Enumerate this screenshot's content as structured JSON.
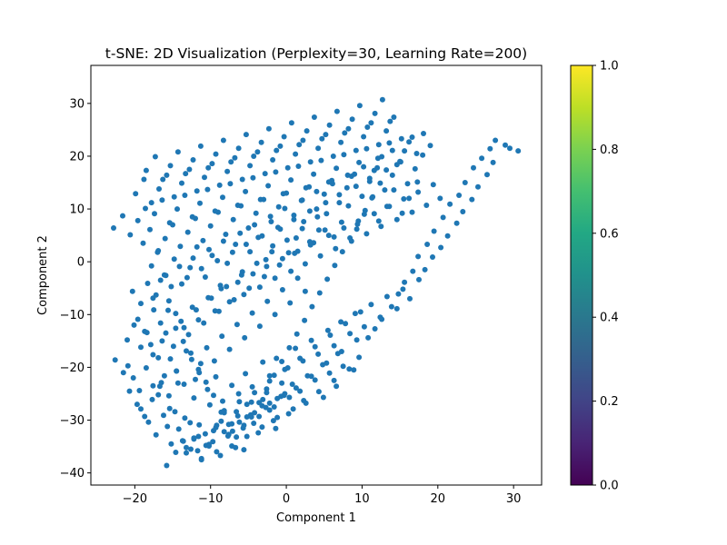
{
  "chart_data": {
    "type": "scatter",
    "title": "t-SNE: 2D Visualization (Perplexity=30, Learning Rate=200)",
    "xlabel": "Component 1",
    "ylabel": "Component 2",
    "xlim": [
      -25.8,
      33.7
    ],
    "ylim": [
      -42.3,
      37.2
    ],
    "xticks": [
      -20,
      -10,
      0,
      10,
      20,
      30
    ],
    "yticks": [
      -40,
      -30,
      -20,
      -10,
      0,
      10,
      20,
      30
    ],
    "grid": false,
    "point_color": "#1f77b4",
    "colorbar": {
      "colormap": "viridis",
      "range": [
        0.0,
        1.0
      ],
      "ticks": [
        "0.0",
        "0.2",
        "0.4",
        "0.6",
        "0.8",
        "1.0"
      ]
    },
    "points": {
      "x": [
        -22.6,
        -21.5,
        -20.9,
        -20.2,
        -19.4,
        -18.5,
        -17.6,
        -16.9,
        -16.1,
        -15.4,
        -14.3,
        -13.4,
        -12.2,
        -11.5,
        -10.1,
        -9.3,
        -8.2,
        -7.1,
        -6.4,
        -5.2,
        -4.3,
        -3.1,
        -2.2,
        -1.4,
        -0.3,
        0.9,
        1.8,
        2.6,
        3.8,
        4.9,
        5.7,
        6.6,
        7.5,
        8.9,
        9.6,
        10.8,
        11.7,
        12.6,
        13.9,
        14.8,
        15.6,
        16.7,
        17.4,
        18.6,
        19.5,
        20.7,
        21.6,
        22.8,
        23.6,
        24.7,
        25.8,
        26.9,
        27.6,
        28.9,
        29.5,
        30.6,
        -21.0,
        -20.1,
        -19.2,
        -18.4,
        -17.6,
        -16.4,
        -15.3,
        -14.5,
        -13.2,
        -12.0,
        -11.3,
        -10.4,
        -9.3,
        -8.4,
        -7.2,
        -6.3,
        -5.4,
        -4.5,
        -3.1,
        -2.2,
        -1.3,
        0.2,
        1.2,
        2.2,
        3.3,
        4.2,
        5.5,
        6.3,
        7.2,
        8.4,
        9.1,
        10.3,
        11.2,
        12.4,
        13.3,
        14.6,
        15.4,
        16.3,
        17.5,
        18.3,
        19.3,
        20.4,
        21.3,
        22.5,
        23.3,
        24.5,
        25.3,
        26.5,
        27.3,
        -19.6,
        -18.7,
        -17.5,
        -16.6,
        -15.5,
        -14.6,
        -13.5,
        -12.4,
        -11.6,
        -10.3,
        -9.4,
        -8.6,
        -7.5,
        -6.4,
        -5.6,
        -4.4,
        -3.5,
        -2.6,
        -1.5,
        -0.5,
        0.6,
        1.5,
        2.5,
        3.6,
        4.5,
        5.6,
        6.5,
        7.6,
        8.6,
        9.5,
        10.6,
        11.6,
        12.5,
        13.6,
        14.6,
        15.5,
        16.6,
        17.4,
        18.5,
        19.4,
        20.3,
        -20.3,
        -19.2,
        -18.3,
        -17.2,
        -16.1,
        -15.2,
        -14.1,
        -13.1,
        -12.3,
        -11.2,
        -10.2,
        -9.1,
        -8.3,
        -7.1,
        -6.1,
        -5.3,
        -4.2,
        -3.2,
        -2.1,
        -1.1,
        -0.2,
        1.0,
        2.1,
        3.1,
        4.0,
        5.2,
        6.1,
        7.0,
        8.1,
        9.2,
        10.2,
        11.0,
        12.1,
        13.2,
        14.0,
        15.1,
        16.2,
        17.2,
        18.1,
        19.0,
        -17.8,
        -16.9,
        -15.9,
        -14.8,
        -13.8,
        -12.7,
        -11.8,
        -10.7,
        -9.8,
        -8.7,
        -7.8,
        -6.7,
        -5.8,
        -4.8,
        -3.7,
        -2.7,
        -1.8,
        -0.8,
        0.3,
        1.3,
        2.3,
        3.2,
        4.3,
        5.3,
        6.3,
        7.3,
        8.2,
        9.3,
        10.3,
        11.3,
        12.2,
        13.3,
        14.2,
        15.3,
        16.2,
        17.3,
        -18.9,
        -18.0,
        -17.0,
        -16.0,
        -15.0,
        -14.0,
        -13.0,
        -12.0,
        -11.0,
        -10.0,
        -9.0,
        -8.0,
        -7.0,
        -6.0,
        -5.0,
        -4.0,
        -3.0,
        -2.0,
        -1.0,
        0.0,
        1.0,
        2.0,
        3.0,
        4.0,
        5.0,
        6.0,
        7.0,
        8.0,
        9.0,
        10.0,
        11.0,
        12.0,
        13.0,
        14.0,
        15.0,
        16.0,
        17.0,
        18.0,
        -17.4,
        -16.4,
        -15.4,
        -14.4,
        -13.4,
        -12.4,
        -11.4,
        -10.4,
        -9.4,
        -8.4,
        -7.4,
        -6.4,
        -5.4,
        -4.4,
        -3.4,
        -2.4,
        -1.4,
        -0.4,
        0.6,
        1.6,
        2.6,
        3.6,
        4.6,
        5.6,
        6.6,
        7.6,
        8.6,
        9.6,
        10.6,
        11.6,
        12.6,
        13.6,
        14.6,
        15.6,
        16.6,
        -19.9,
        -18.8,
        -17.8,
        -16.8,
        -15.8,
        -14.8,
        -13.8,
        -12.8,
        -11.8,
        -10.8,
        -9.8,
        -8.8,
        -7.8,
        -6.8,
        -5.8,
        -4.8,
        -3.8,
        -2.8,
        -1.8,
        -0.8,
        0.2,
        1.2,
        2.2,
        3.2,
        4.2,
        5.2,
        6.2,
        7.2,
        8.2,
        9.2,
        10.2,
        11.2,
        12.2,
        13.2,
        14.2,
        15.2,
        -18.5,
        -17.3,
        -16.3,
        -15.3,
        -14.3,
        -13.3,
        -12.3,
        -11.3,
        -10.3,
        -9.3,
        -8.3,
        -7.3,
        -6.3,
        -5.3,
        -4.3,
        -3.3,
        -2.3,
        -1.3,
        -0.3,
        0.7,
        1.7,
        2.7,
        3.7,
        4.7,
        5.7,
        6.7,
        7.7,
        8.7,
        9.7,
        10.7,
        11.7,
        12.7,
        13.7,
        -22.8,
        -21.6,
        -20.6,
        -19.6,
        -18.6,
        -17.6,
        -16.6,
        -15.6,
        -14.6,
        -13.6,
        -12.6,
        -11.6,
        -10.6,
        -9.6,
        -8.6,
        -7.6,
        -6.6,
        -5.6,
        -4.6,
        -3.6,
        -2.6,
        -1.6,
        -0.6,
        0.4,
        1.4,
        2.4,
        3.4,
        4.4,
        5.4,
        6.4,
        7.4,
        8.4,
        9.4,
        10.4,
        11.4,
        12.4,
        -20.7,
        -19.7,
        -18.7,
        -17.7,
        -16.7,
        -15.7,
        -14.7,
        -13.7,
        -12.7,
        -11.7,
        -10.7,
        -9.7,
        -8.7,
        -7.7,
        -6.7,
        -5.7,
        -4.7,
        -3.7,
        -2.7,
        -1.7,
        -0.7,
        0.3,
        1.3,
        2.3,
        3.3,
        4.3,
        5.3,
        6.3,
        7.3,
        8.3,
        9.3,
        -19.2,
        -18.2,
        -17.2,
        -16.2,
        -15.2,
        -14.2,
        -13.2,
        -12.2,
        -11.2,
        -10.2,
        -9.2,
        -8.2,
        -7.2,
        -6.2,
        -5.2,
        -4.2,
        -3.2,
        -2.2,
        -1.2,
        -0.2,
        0.8,
        1.8,
        2.8,
        3.8,
        4.8,
        5.8,
        6.8,
        7.8,
        9.8,
        -17.9,
        -16.9,
        -15.9,
        -14.9,
        -13.9,
        -12.9,
        -11.9,
        -10.9,
        -9.9,
        -8.9,
        -7.9,
        -6.9,
        -5.9,
        -4.9,
        -3.9,
        -2.9,
        -1.9,
        -0.9,
        0.1,
        1.1,
        2.1,
        3.1,
        4.1,
        5.1,
        -16.5,
        -15.5,
        -14.5,
        -13.5,
        -12.5,
        -11.5,
        -10.5,
        -9.5,
        -8.5,
        -7.5,
        -6.5,
        -5.5,
        -4.5,
        -3.5,
        -2.5,
        -1.5,
        -0.5,
        0.5,
        1.5,
        2.5,
        -15.8,
        -14.6,
        -13.6,
        -12.6,
        -11.6,
        -10.6,
        -9.6,
        -8.6,
        -7.6,
        -6.6,
        -5.6,
        -4.6,
        -3.6,
        -2.6,
        -1.6,
        -0.6,
        0.4,
        -13.2,
        -12.2,
        -11.2,
        -10.2,
        -9.2,
        -8.2,
        -7.2,
        -6.2,
        -5.2,
        -4.2,
        -3.2,
        -2.2,
        -1.2,
        -0.2
      ],
      "y": [
        -18.6,
        -21.0,
        -19.7,
        -22.0,
        -24.4,
        -20.1,
        -23.5,
        -25.2,
        -21.6,
        -27.8,
        -23.0,
        -29.6,
        -25.8,
        -30.9,
        -27.1,
        -31.4,
        -28.6,
        -32.1,
        -29.2,
        -27.0,
        -30.6,
        -26.1,
        -28.1,
        -31.6,
        -25.3,
        -27.9,
        -24.5,
        -26.8,
        -22.4,
        -25.7,
        -21.1,
        -23.6,
        -19.8,
        -20.5,
        -18.1,
        -14.4,
        -12.7,
        -10.9,
        -8.5,
        -6.1,
        -3.9,
        -1.8,
        1.0,
        3.3,
        5.8,
        8.4,
        10.9,
        12.6,
        15.0,
        17.8,
        19.6,
        21.4,
        23.0,
        22.1,
        21.5,
        21.0,
        -14.8,
        -12.0,
        -16.2,
        -13.4,
        -17.6,
        -15.0,
        -18.4,
        -20.7,
        -16.9,
        -22.3,
        -19.3,
        -24.2,
        -21.8,
        -26.4,
        -23.4,
        -25.0,
        -21.2,
        -23.7,
        -19.0,
        -21.6,
        -18.3,
        -20.1,
        -16.4,
        -18.8,
        -14.9,
        -17.5,
        -13.0,
        -15.9,
        -11.4,
        -13.6,
        -9.8,
        -12.3,
        -8.1,
        -10.5,
        -6.6,
        -8.9,
        -5.2,
        -7.0,
        -3.4,
        -1.5,
        0.9,
        2.7,
        4.9,
        7.3,
        9.5,
        11.8,
        14.2,
        16.5,
        18.8,
        -10.9,
        -13.2,
        -9.1,
        -11.6,
        -7.4,
        -9.8,
        -12.5,
        -8.6,
        -11.0,
        -6.8,
        -9.3,
        -5.1,
        -7.6,
        -3.9,
        -6.2,
        -2.3,
        -4.8,
        -0.9,
        -3.1,
        0.6,
        -1.8,
        2.0,
        -0.4,
        3.6,
        1.1,
        5.0,
        2.5,
        6.4,
        3.9,
        7.7,
        5.3,
        9.1,
        6.7,
        10.5,
        8.0,
        11.9,
        9.4,
        13.2,
        10.7,
        14.6,
        12.0,
        -5.6,
        -7.9,
        -4.1,
        -6.3,
        -2.5,
        -4.7,
        -0.9,
        -3.0,
        0.7,
        -1.3,
        2.3,
        0.2,
        3.9,
        1.8,
        5.4,
        3.3,
        7.0,
        4.9,
        8.6,
        6.5,
        10.1,
        8.0,
        11.7,
        9.6,
        13.3,
        11.2,
        14.8,
        12.7,
        16.4,
        14.3,
        18.0,
        15.8,
        19.6,
        17.4,
        21.1,
        18.9,
        22.7,
        20.5,
        24.3,
        22.0,
        -0.8,
        2.1,
        -2.6,
        0.5,
        -4.2,
        -1.1,
        2.8,
        -2.9,
        1.2,
        -4.5,
        -0.3,
        3.3,
        -1.9,
        1.9,
        4.6,
        0.4,
        3.0,
        6.2,
        1.7,
        4.5,
        7.6,
        3.2,
        6.0,
        9.1,
        4.7,
        7.5,
        10.6,
        6.2,
        9.0,
        12.1,
        7.7,
        10.5,
        13.6,
        9.2,
        12.0,
        15.1,
        3.5,
        6.1,
        1.8,
        4.4,
        7.0,
        2.9,
        5.6,
        8.2,
        4.0,
        6.8,
        9.4,
        5.2,
        8.0,
        10.6,
        6.4,
        9.2,
        11.8,
        7.6,
        10.4,
        13.0,
        8.8,
        11.6,
        14.2,
        10.0,
        12.8,
        15.4,
        11.2,
        14.0,
        16.6,
        12.4,
        15.2,
        17.8,
        13.6,
        16.4,
        19.0,
        14.8,
        17.6,
        20.2,
        9.1,
        11.7,
        7.4,
        10.0,
        12.6,
        8.5,
        11.1,
        13.7,
        9.6,
        12.2,
        14.8,
        10.7,
        13.3,
        15.9,
        11.8,
        14.4,
        17.0,
        12.9,
        15.5,
        18.1,
        14.0,
        16.6,
        19.2,
        15.1,
        17.7,
        20.3,
        16.2,
        18.8,
        21.4,
        17.3,
        19.9,
        22.5,
        18.4,
        21.0,
        23.6,
        12.9,
        15.6,
        11.2,
        13.8,
        16.4,
        12.3,
        14.9,
        17.5,
        13.4,
        16.0,
        18.6,
        14.5,
        17.1,
        19.7,
        15.6,
        18.2,
        20.8,
        16.7,
        19.3,
        21.9,
        17.8,
        20.4,
        23.0,
        18.9,
        21.5,
        24.1,
        20.0,
        22.6,
        25.2,
        21.1,
        23.7,
        26.3,
        22.2,
        24.8,
        27.4,
        23.3,
        17.3,
        19.9,
        15.6,
        18.2,
        20.8,
        16.7,
        19.3,
        21.9,
        17.8,
        20.4,
        23.0,
        18.9,
        21.5,
        24.1,
        20.0,
        22.6,
        25.2,
        21.1,
        23.7,
        26.3,
        22.2,
        24.8,
        27.4,
        23.3,
        25.9,
        28.5,
        24.4,
        27.0,
        29.6,
        25.5,
        28.1,
        30.7,
        26.6,
        6.4,
        8.7,
        5.1,
        7.8,
        10.1,
        -6.9,
        -3.5,
        -9.2,
        -12.6,
        -15.1,
        -17.3,
        -20.4,
        -22.8,
        -25.3,
        -28.5,
        -30.8,
        -33.2,
        -35.6,
        -29.4,
        -26.7,
        -24.1,
        -21.5,
        -18.9,
        -16.3,
        -13.7,
        -11.1,
        -8.5,
        -5.9,
        -3.3,
        -0.7,
        1.9,
        4.5,
        7.1,
        9.7,
        12.3,
        14.9,
        -24.5,
        -27.0,
        -29.3,
        -26.1,
        -23.6,
        -31.2,
        -28.4,
        -33.9,
        -30.5,
        -35.8,
        -32.6,
        -34.1,
        -36.7,
        -33.0,
        -35.2,
        -31.5,
        -29.0,
        -32.4,
        -27.6,
        -30.1,
        -25.5,
        -28.8,
        -23.9,
        -26.3,
        -21.7,
        -24.6,
        -19.2,
        -22.5,
        -17.0,
        -20.3,
        -14.8,
        -27.9,
        -30.4,
        -32.8,
        -29.1,
        -34.5,
        -31.7,
        -36.2,
        -33.6,
        -37.5,
        -34.9,
        -31.0,
        -28.2,
        -30.7,
        -26.5,
        -29.4,
        -24.8,
        -27.3,
        -22.6,
        -25.9,
        -20.4,
        -23.2,
        -18.3,
        -21.6,
        -16.1,
        -19.5,
        -13.9,
        -17.4,
        -11.7,
        -9.5,
        -15.7,
        -18.2,
        -13.5,
        -16.0,
        -11.3,
        -13.8,
        -9.1,
        -11.6,
        -6.9,
        -9.4,
        -4.7,
        -7.2,
        -2.5,
        -5.0,
        -0.3,
        -2.8,
        1.9,
        -0.6,
        4.1,
        1.6,
        6.3,
        3.8,
        8.5,
        6.0,
        -22.9,
        -25.4,
        -20.7,
        -23.2,
        -18.5,
        -21.0,
        -16.3,
        -18.8,
        -14.1,
        -16.6,
        -11.9,
        -14.4,
        -9.7,
        -12.2,
        -7.5,
        -10.0,
        -5.3,
        -7.8,
        -3.1,
        -5.6,
        -38.6,
        -36.1,
        -34.0,
        -35.5,
        -33.1,
        -34.8,
        -32.0,
        -30.2,
        -32.7,
        -28.4,
        -31.0,
        -26.6,
        -29.3,
        -24.8,
        -27.5,
        -23.0,
        -25.7,
        -35.2,
        -33.4,
        -37.3,
        -34.6,
        -36.0,
        -32.2,
        -34.9,
        -30.4,
        -33.1,
        -28.6,
        -31.3,
        -26.8,
        -29.5,
        -25.0
      ],
      "count_note": ""
    }
  }
}
